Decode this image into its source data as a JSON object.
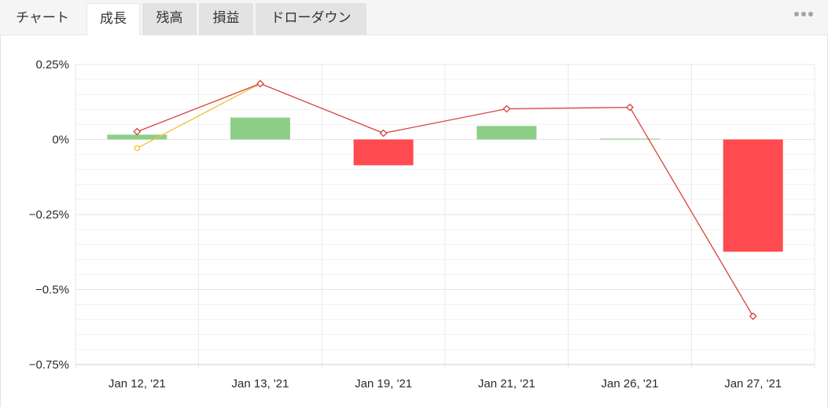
{
  "tabs": [
    {
      "label": "チャート",
      "active": false
    },
    {
      "label": "成長",
      "active": true
    },
    {
      "label": "残高",
      "active": false
    },
    {
      "label": "損益",
      "active": false
    },
    {
      "label": "ドローダウン",
      "active": false
    }
  ],
  "menu": {
    "icon": "more-horizontal-icon"
  },
  "colors": {
    "tab_active": "#ffffff",
    "tab_inactive": "#e3e3e3",
    "tab_bar_background": "#f5f5f5"
  },
  "chart_data": {
    "type": "bar",
    "categories": [
      "Jan 12, '21",
      "Jan 13, '21",
      "Jan 19, '21",
      "Jan 21, '21",
      "Jan 26, '21",
      "Jan 27, '21"
    ],
    "series": [
      {
        "type": "bar",
        "values": [
          0.016,
          0.073,
          -0.086,
          0.045,
          0.002,
          -0.374
        ],
        "color_positive": "#8ecf87",
        "color_negative": "#ff4b4f"
      },
      {
        "type": "line",
        "marker": "diamond",
        "color": "#d8423d",
        "values": [
          0.026,
          0.186,
          0.021,
          0.102,
          0.107,
          -0.589
        ]
      },
      {
        "type": "line",
        "marker": "circle",
        "color": "#f0c232",
        "values": [
          -0.029,
          0.186,
          null,
          null,
          null,
          null
        ]
      }
    ],
    "yticks": [
      {
        "value": 0.25,
        "label": "0.25%"
      },
      {
        "value": 0,
        "label": "0%"
      },
      {
        "value": -0.25,
        "label": "−0.25%"
      },
      {
        "value": -0.5,
        "label": "−0.5%"
      },
      {
        "value": -0.75,
        "label": "−0.75%"
      }
    ],
    "ylim": [
      -0.75,
      0.25
    ],
    "grid": true,
    "legend": false
  }
}
